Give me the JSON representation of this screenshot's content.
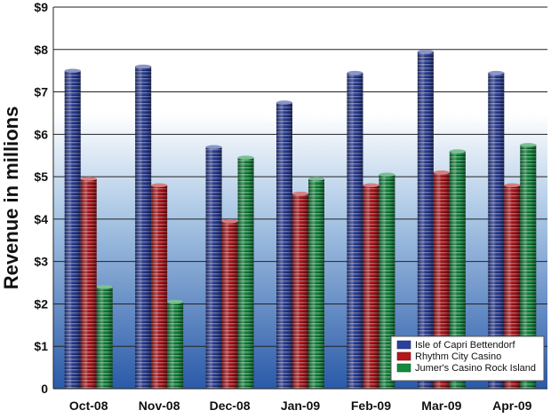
{
  "chart_data": {
    "type": "bar",
    "title": "",
    "xlabel": "",
    "ylabel": "Revenue in millions",
    "ylim": [
      0,
      9
    ],
    "yticks": [
      "0",
      "$1",
      "$2",
      "$3",
      "$4",
      "$5",
      "$6",
      "$7",
      "$8",
      "$9"
    ],
    "grid": true,
    "legend_position": "bottom-right",
    "categories": [
      "Oct-08",
      "Nov-08",
      "Dec-08",
      "Jan-09",
      "Feb-09",
      "Mar-09",
      "Apr-09"
    ],
    "series": [
      {
        "name": "Isle of Capri Bettendorf",
        "color": "#2b3f9b",
        "values": [
          7.5,
          7.6,
          5.7,
          6.75,
          7.45,
          7.95,
          7.45
        ]
      },
      {
        "name": "Rhythm City Casino",
        "color": "#b3161c",
        "values": [
          4.95,
          4.8,
          3.95,
          4.6,
          4.8,
          5.1,
          4.8
        ]
      },
      {
        "name": "Jumer's Casino Rock Island",
        "color": "#138a3f",
        "values": [
          2.4,
          2.05,
          5.45,
          4.95,
          5.05,
          5.6,
          5.75
        ]
      }
    ]
  }
}
